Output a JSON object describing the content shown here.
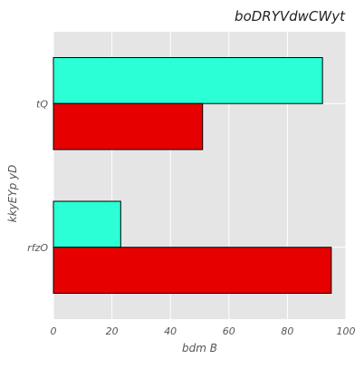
{
  "chart_data": {
    "type": "bar",
    "orientation": "horizontal",
    "title": "boDRYVdwCWyt",
    "xlabel": "bdm B",
    "ylabel": "kkyEYp yD",
    "categories": [
      "tQ",
      "rfzO"
    ],
    "series": [
      {
        "color": "#2affd5",
        "values": [
          92,
          23
        ]
      },
      {
        "color": "#e60000",
        "values": [
          51,
          95
        ]
      }
    ],
    "xlim": [
      0,
      100
    ],
    "xticks": [
      "0",
      "20",
      "40",
      "60",
      "80",
      "100"
    ],
    "grid": true,
    "legend": "none"
  },
  "colors": {
    "plot_background": "#e5e5e5",
    "grid": "#ffffff"
  }
}
